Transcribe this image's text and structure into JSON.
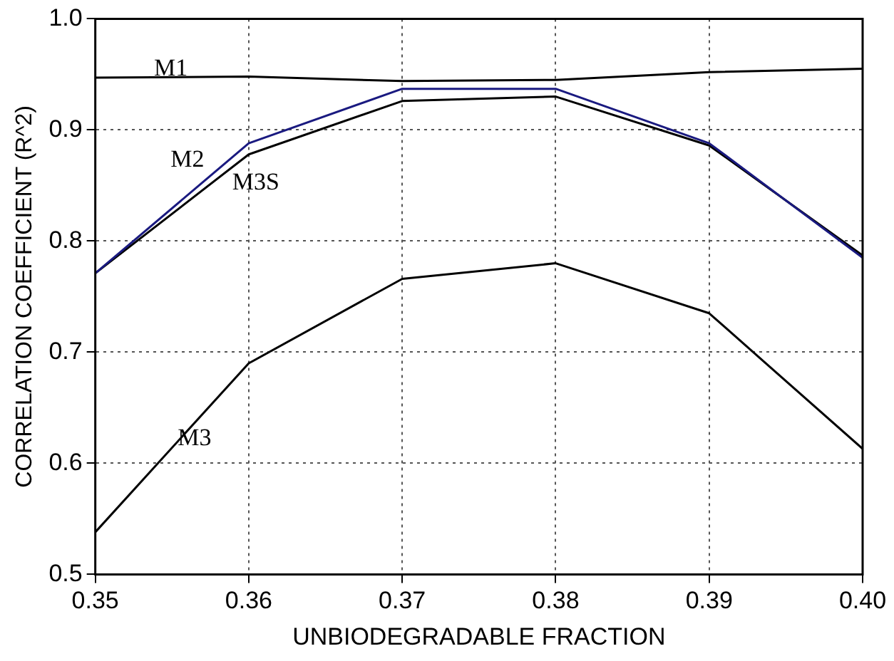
{
  "chart_data": {
    "type": "line",
    "xlabel": "UNBIODEGRADABLE FRACTION",
    "ylabel": "CORRELATION COEFFICIENT (R^2)",
    "x": [
      0.35,
      0.36,
      0.37,
      0.38,
      0.39,
      0.4
    ],
    "series": [
      {
        "name": "M1",
        "color": "#000000",
        "values": [
          0.947,
          0.948,
          0.944,
          0.945,
          0.952,
          0.955
        ]
      },
      {
        "name": "M2",
        "color": "#1a1a80",
        "values": [
          0.771,
          0.888,
          0.937,
          0.937,
          0.888,
          0.785
        ]
      },
      {
        "name": "M3S",
        "color": "#000000",
        "values": [
          0.771,
          0.878,
          0.926,
          0.93,
          0.886,
          0.787
        ]
      },
      {
        "name": "M3",
        "color": "#000000",
        "values": [
          0.538,
          0.69,
          0.766,
          0.78,
          0.735,
          0.613
        ]
      }
    ],
    "xlim": [
      0.35,
      0.4
    ],
    "xticks": [
      {
        "value": 0.35,
        "label": "0.35"
      },
      {
        "value": 0.36,
        "label": "0.36"
      },
      {
        "value": 0.37,
        "label": "0.37"
      },
      {
        "value": 0.38,
        "label": "0.38"
      },
      {
        "value": 0.39,
        "label": "0.39"
      },
      {
        "value": 0.4,
        "label": "0.40"
      }
    ],
    "ylim": [
      0.5,
      1.0
    ],
    "yticks": [
      {
        "value": 0.5,
        "label": "0.5"
      },
      {
        "value": 0.6,
        "label": "0.6"
      },
      {
        "value": 0.7,
        "label": "0.7"
      },
      {
        "value": 0.8,
        "label": "0.8"
      },
      {
        "value": 0.9,
        "label": "0.9"
      },
      {
        "value": 1.0,
        "label": "1.0"
      }
    ],
    "grid": true,
    "marker": "none",
    "line_style": "solid"
  }
}
